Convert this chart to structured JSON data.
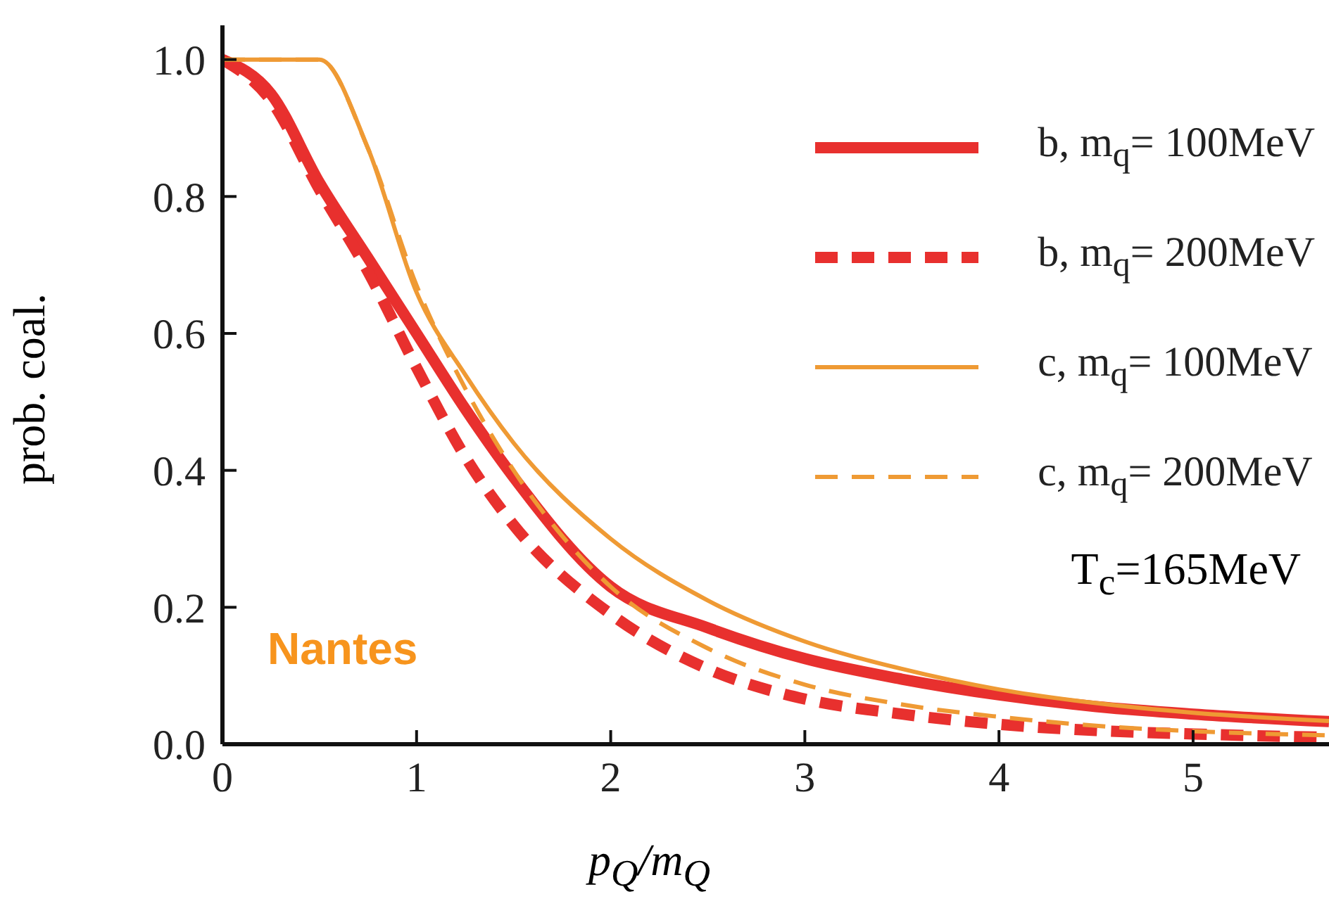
{
  "chart_data": {
    "type": "line",
    "xlabel": "p$_{Q}$/m$_{Q}$",
    "ylabel": "prob. coal.",
    "x": [
      0,
      0.25,
      0.5,
      0.75,
      1,
      1.25,
      1.5,
      2,
      2.5,
      3,
      3.5,
      4,
      4.5,
      5,
      5.7
    ],
    "series": [
      {
        "name": "b, m$_{q}$= 100MeV",
        "color": "#e8302e",
        "line_style": "solid",
        "values": [
          1.0,
          0.95,
          0.82,
          0.71,
          0.6,
          0.49,
          0.39,
          0.23,
          0.17,
          0.125,
          0.095,
          0.072,
          0.055,
          0.044,
          0.033
        ]
      },
      {
        "name": "b, m$_{q}$= 200MeV",
        "color": "#e8302e",
        "line_style": "dashed",
        "values": [
          1.0,
          0.94,
          0.81,
          0.69,
          0.55,
          0.42,
          0.32,
          0.19,
          0.11,
          0.066,
          0.044,
          0.029,
          0.02,
          0.015,
          0.01
        ]
      },
      {
        "name": "c, m$_{q}$= 100MeV",
        "color": "#ef9a34",
        "line_style": "solid",
        "values": [
          1.0,
          1.0,
          1.0,
          0.87,
          0.66,
          0.54,
          0.44,
          0.3,
          0.21,
          0.15,
          0.11,
          0.08,
          0.06,
          0.046,
          0.034
        ]
      },
      {
        "name": "c, m$_{q}$= 200MeV",
        "color": "#ef9a34",
        "line_style": "dashed",
        "values": [
          1.0,
          1.0,
          1.0,
          0.87,
          0.67,
          0.52,
          0.4,
          0.23,
          0.14,
          0.087,
          0.058,
          0.04,
          0.027,
          0.019,
          0.013
        ]
      }
    ],
    "xlim": [
      0,
      5.7
    ],
    "xticks": [
      0,
      1,
      2,
      3,
      4,
      5
    ],
    "ylim": [
      0,
      1.05
    ],
    "yticks": [
      {
        "value": 0,
        "label": "0.0"
      },
      {
        "value": 0.2,
        "label": "0.2"
      },
      {
        "value": 0.4,
        "label": "0.4"
      },
      {
        "value": 0.6,
        "label": "0.6"
      },
      {
        "value": 0.8,
        "label": "0.8"
      },
      {
        "value": 1,
        "label": "1.0"
      }
    ],
    "grid": false,
    "legend": "top right",
    "marker": "none",
    "annotations": [
      "T$_{c}$=165MeV",
      "Nantes"
    ]
  }
}
